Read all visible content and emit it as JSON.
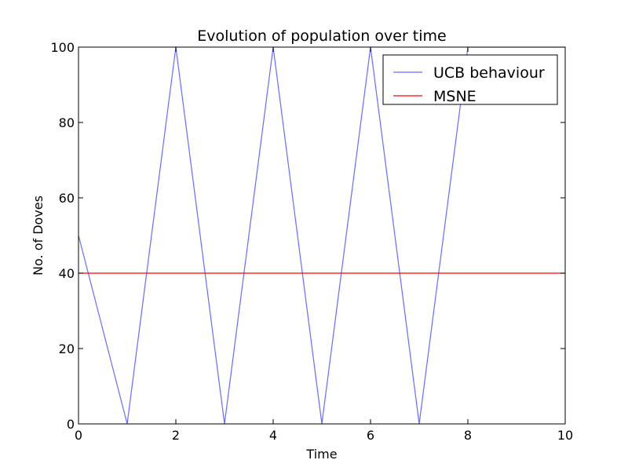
{
  "chart_data": {
    "type": "line",
    "title": "Evolution of population over time",
    "xlabel": "Time",
    "ylabel": "No. of Doves",
    "xlim": [
      0,
      10
    ],
    "ylim": [
      0,
      100
    ],
    "xticks": [
      "0",
      "2",
      "4",
      "6",
      "8",
      "10"
    ],
    "yticks": [
      "0",
      "20",
      "40",
      "60",
      "80",
      "100"
    ],
    "grid": false,
    "legend_position": "top-right",
    "series": [
      {
        "name": "UCB behaviour",
        "color": "#6a6aff",
        "x": [
          0,
          1,
          2,
          3,
          4,
          5,
          6,
          7,
          8,
          10
        ],
        "y": [
          50,
          0,
          100,
          0,
          100,
          0,
          100,
          0,
          100,
          100
        ]
      },
      {
        "name": "MSNE",
        "color": "#ff0000",
        "x": [
          0,
          10
        ],
        "y": [
          40,
          40
        ]
      }
    ]
  }
}
